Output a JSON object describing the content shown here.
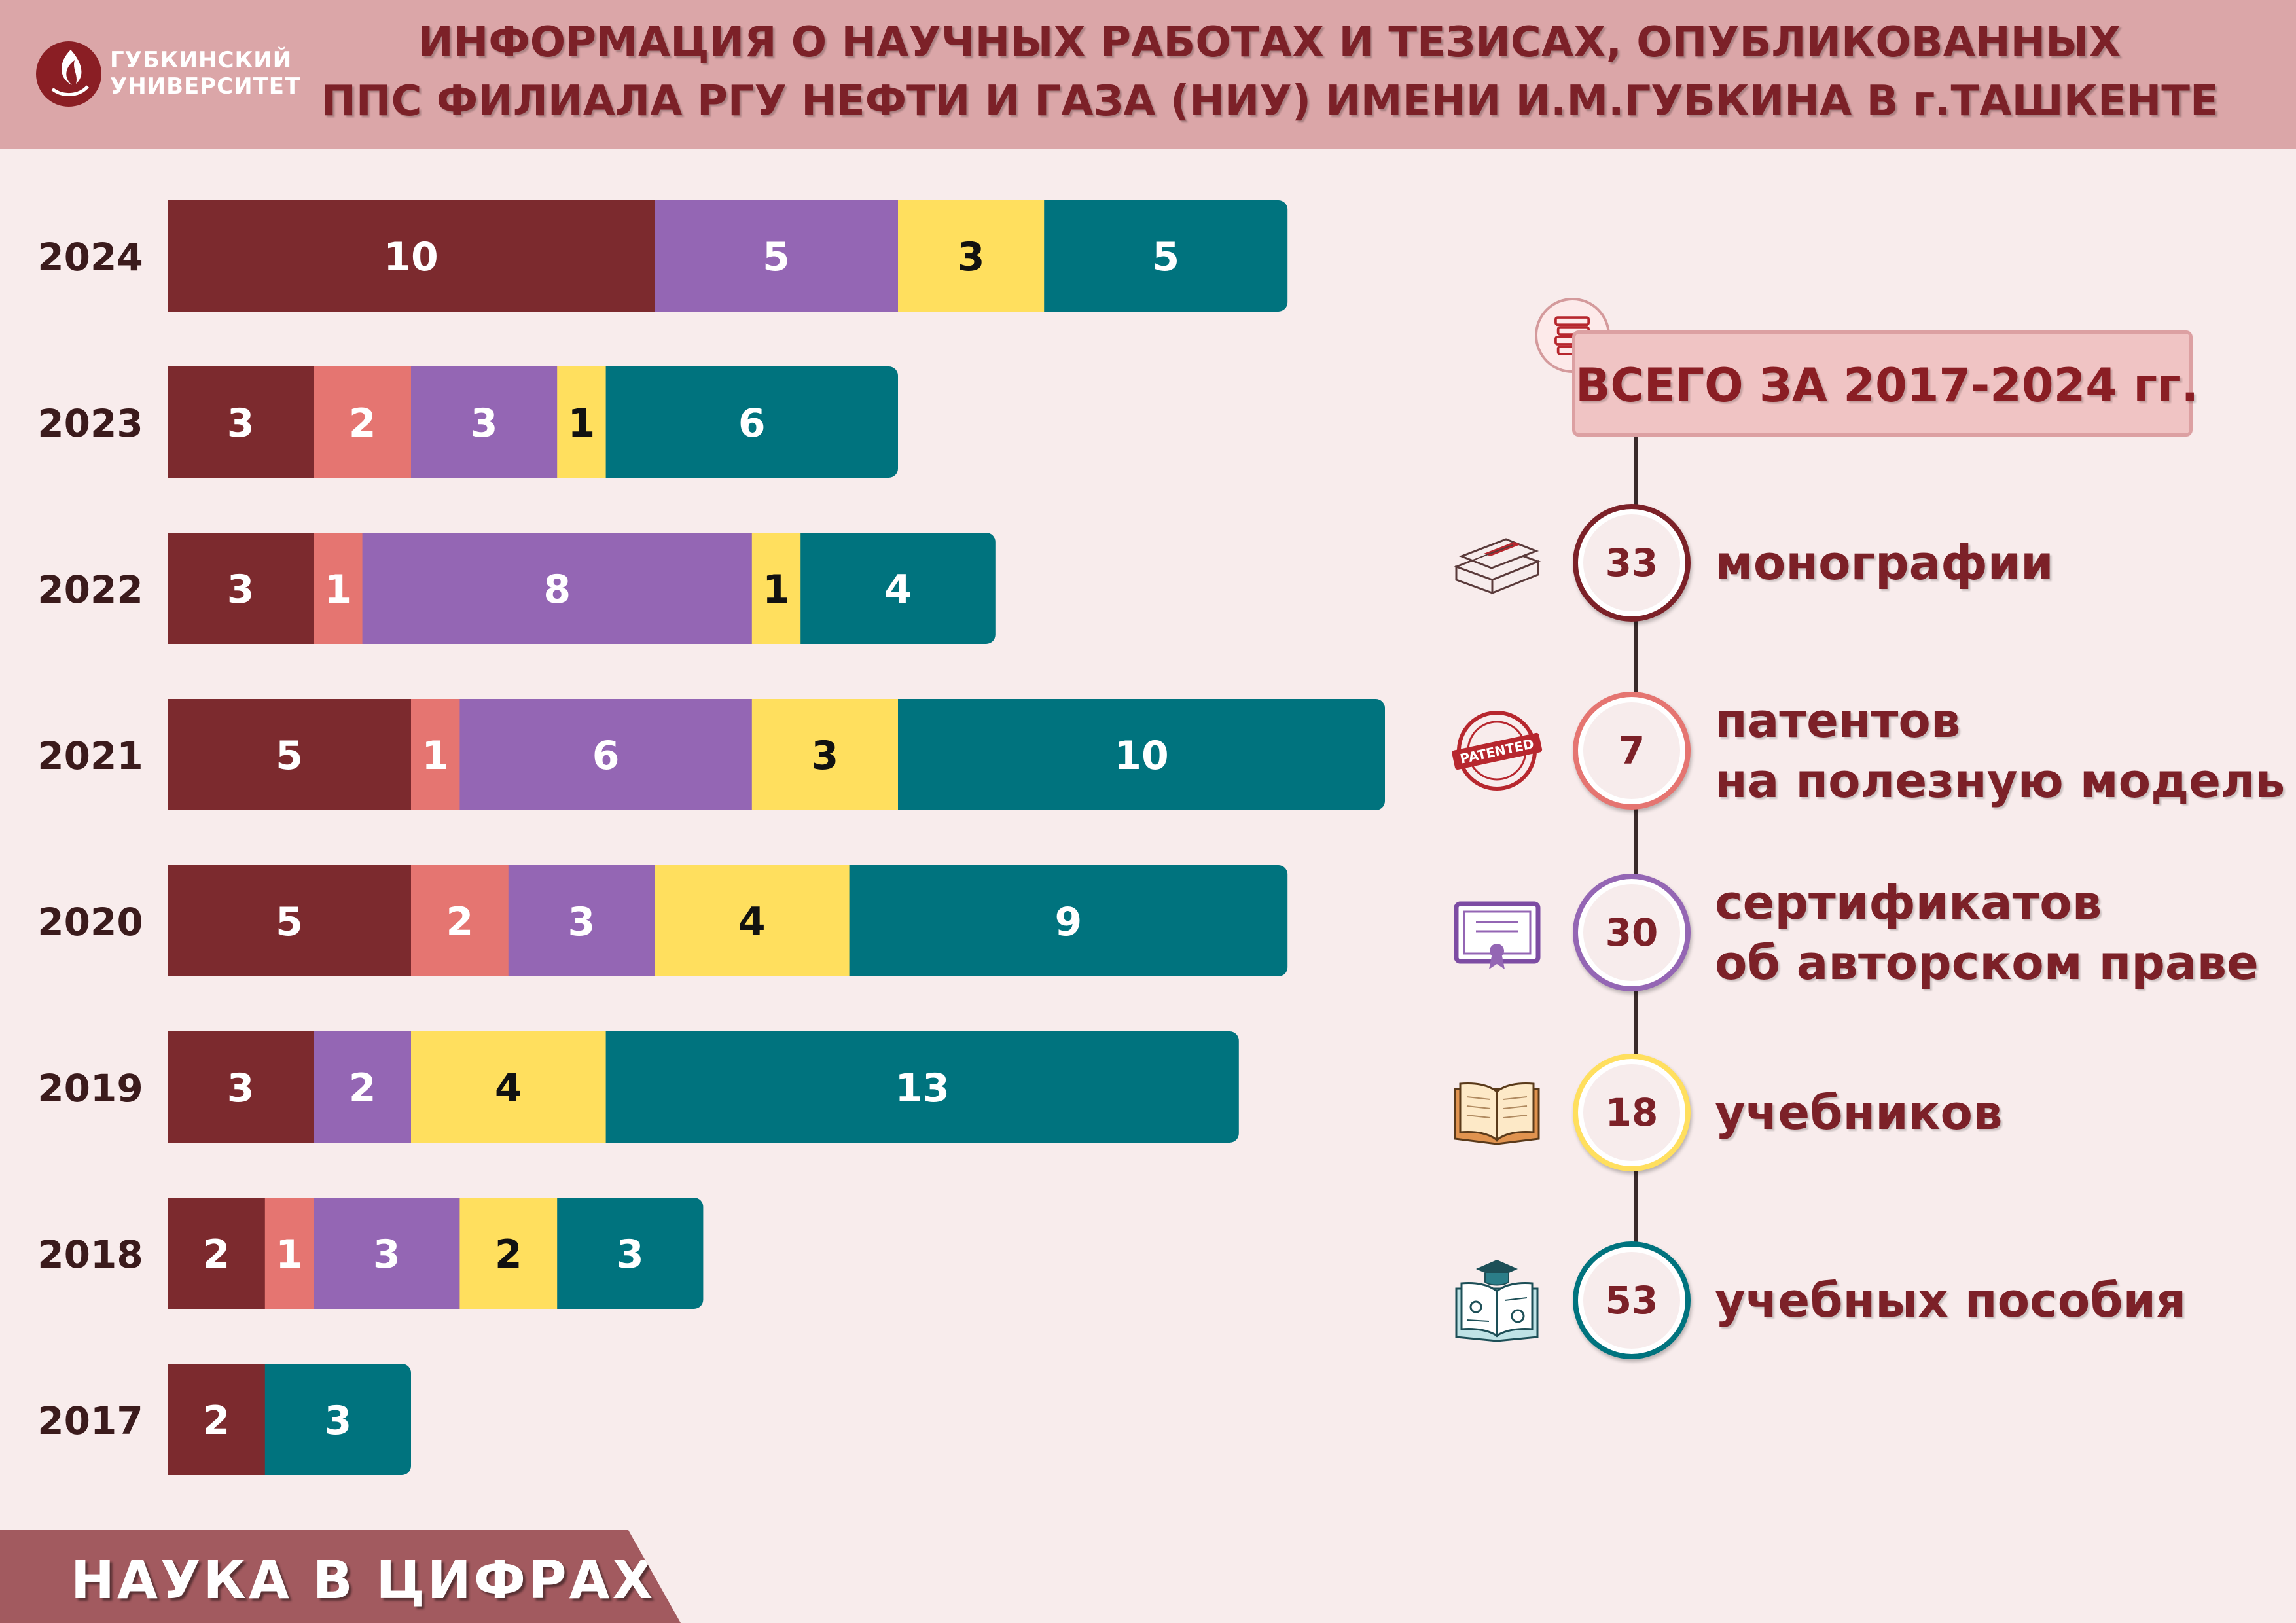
{
  "header": {
    "logo_line1": "ГУБКИНСКИЙ",
    "logo_line2": "УНИВЕРСИТЕТ",
    "title_line1": "ИНФОРМАЦИЯ О НАУЧНЫХ РАБОТАХ И ТЕЗИСАХ, ОПУБЛИКОВАННЫХ",
    "title_line2": "ППС ФИЛИАЛА РГУ НЕФТИ И ГАЗА (НИУ) ИМЕНИ И.М.ГУБКИНА В г.ТАШКЕНТЕ"
  },
  "chart_data": {
    "type": "bar",
    "orientation": "horizontal",
    "stacked": true,
    "categories": [
      "2024",
      "2023",
      "2022",
      "2021",
      "2020",
      "2019",
      "2018",
      "2017"
    ],
    "series": [
      {
        "color": "#7c2a2e",
        "text_color": "#ffffff",
        "values": [
          10,
          3,
          3,
          5,
          5,
          3,
          2,
          2
        ]
      },
      {
        "color": "#e57571",
        "text_color": "#ffffff",
        "values": [
          0,
          2,
          1,
          1,
          2,
          0,
          1,
          0
        ]
      },
      {
        "color": "#9466b4",
        "text_color": "#ffffff",
        "values": [
          5,
          3,
          8,
          6,
          3,
          2,
          3,
          0
        ]
      },
      {
        "color": "#ffdf5e",
        "text_color": "#111111",
        "values": [
          3,
          1,
          1,
          3,
          4,
          4,
          2,
          0
        ]
      },
      {
        "color": "#00737e",
        "text_color": "#ffffff",
        "values": [
          5,
          6,
          4,
          10,
          9,
          13,
          3,
          3
        ]
      }
    ],
    "grid": false,
    "legend": "none"
  },
  "totals": {
    "title": "ВСЕГО ЗА 2017-2024 гг.",
    "items": [
      {
        "value": "33",
        "label": [
          "монографии"
        ],
        "color": "#7c2128",
        "icon": "monograph-icon"
      },
      {
        "value": "7",
        "label": [
          "патентов",
          "на полезную модель"
        ],
        "color": "#e57571",
        "icon": "patented-stamp-icon",
        "icon_text": "PATENTED"
      },
      {
        "value": "30",
        "label": [
          "сертификатов",
          "об авторском праве"
        ],
        "color": "#9466b4",
        "icon": "certificate-icon"
      },
      {
        "value": "18",
        "label": [
          "учебников"
        ],
        "color": "#ffdf5e",
        "icon": "open-book-icon"
      },
      {
        "value": "53",
        "label": [
          "учебных пособия"
        ],
        "color": "#00737e",
        "icon": "study-guide-icon"
      }
    ]
  },
  "footer": {
    "label": "НАУКА В ЦИФРАХ"
  }
}
